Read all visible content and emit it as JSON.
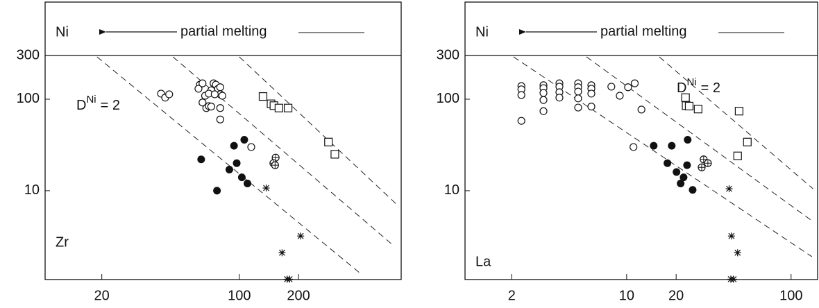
{
  "chart_data": [
    {
      "type": "scatter",
      "xlog": true,
      "ylog": true,
      "xlim": [
        10.3,
        665
      ],
      "ylim": [
        1.07,
        1150
      ],
      "xticks": [
        20,
        100,
        200
      ],
      "yticks": [
        10,
        100,
        300
      ],
      "hline": 300,
      "left_label": "Ni",
      "arrow_label": "partial melting",
      "element_label": "Zr",
      "d_label": {
        "base": "D",
        "sup": "Ni",
        "rest": "= 2"
      },
      "dashed_lines": [
        {
          "x": [
            18.9,
            416
          ],
          "y": [
            290,
            1.23
          ]
        },
        {
          "x": [
            46,
            610
          ],
          "y": [
            290,
            2.5
          ]
        },
        {
          "x": [
            100,
            635
          ],
          "y": [
            290,
            7.0
          ]
        }
      ],
      "series": [
        {
          "marker": "open-circle",
          "color": "#111111",
          "x": [
            40,
            42,
            44,
            63,
            62,
            65,
            67,
            65,
            68,
            70,
            72,
            74,
            76,
            78,
            80,
            80,
            82,
            70,
            75,
            72,
            80,
            80,
            115
          ],
          "y": [
            115,
            104,
            113,
            144,
            130,
            149,
            109,
            92,
            80,
            84,
            125,
            149,
            144,
            130,
            113,
            135,
            109,
            115,
            113,
            83,
            80,
            60,
            30
          ]
        },
        {
          "marker": "filled-circle",
          "color": "#111111",
          "x": [
            64,
            106,
            94,
            97,
            89,
            103,
            110,
            77
          ],
          "y": [
            22,
            36,
            31,
            20,
            17,
            14,
            12,
            10
          ]
        },
        {
          "marker": "square",
          "color": "#111111",
          "x": [
            132,
            145,
            150,
            159,
            177,
            284,
            306
          ],
          "y": [
            107,
            89,
            85,
            80,
            80,
            34,
            25
          ]
        },
        {
          "marker": "circled-plus",
          "color": "#111111",
          "x": [
            153,
            149,
            152
          ],
          "y": [
            23,
            20,
            19
          ]
        },
        {
          "marker": "asterisk",
          "color": "#111111",
          "x": [
            137,
            205,
            165,
            175,
            180
          ],
          "y": [
            10.7,
            3.2,
            2.1,
            1.08,
            1.08
          ]
        }
      ]
    },
    {
      "type": "scatter",
      "xlog": true,
      "ylog": true,
      "xlim": [
        1.04,
        145
      ],
      "ylim": [
        1.07,
        1150
      ],
      "xticks": [
        2,
        10,
        20,
        100
      ],
      "yticks": [
        10,
        100,
        300
      ],
      "hline": 300,
      "left_label": "Ni",
      "arrow_label": "partial melting",
      "element_label": "La",
      "d_label": {
        "base": "D",
        "sup": "Ni",
        "rest": "= 2"
      },
      "dashed_lines": [
        {
          "x": [
            2.05,
            134
          ],
          "y": [
            290,
            1.9
          ]
        },
        {
          "x": [
            5.7,
            136
          ],
          "y": [
            290,
            4.6
          ]
        },
        {
          "x": [
            15.8,
            136
          ],
          "y": [
            290,
            10.5
          ]
        }
      ],
      "series": [
        {
          "marker": "open-circle",
          "color": "#111111",
          "x": [
            2.29,
            2.29,
            2.29,
            2.29,
            3.12,
            3.12,
            3.12,
            3.12,
            3.12,
            3.9,
            3.9,
            3.9,
            3.9,
            5.07,
            5.07,
            5.07,
            5.07,
            5.07,
            6.1,
            6.1,
            6.1,
            6.1,
            8.07,
            9.08,
            10.2,
            11.2,
            12.3,
            11.0
          ],
          "y": [
            139,
            128,
            111,
            58,
            142,
            132,
            117,
            98,
            74,
            149,
            137,
            119,
            104,
            149,
            135,
            121,
            102,
            81,
            142,
            130,
            115,
            83,
            137,
            109,
            135,
            149,
            77,
            30
          ]
        },
        {
          "marker": "filled-circle",
          "color": "#111111",
          "x": [
            14.6,
            23.5,
            18.8,
            17.7,
            23.3,
            20.1,
            22.2,
            21.3,
            25.2
          ],
          "y": [
            31,
            36,
            31,
            20,
            19,
            16,
            14,
            12,
            10.2
          ]
        },
        {
          "marker": "square",
          "color": "#111111",
          "x": [
            22.8,
            23,
            24,
            27.2,
            48.3,
            47.3,
            54.2
          ],
          "y": [
            104,
            85,
            84,
            78,
            74,
            24,
            34
          ]
        },
        {
          "marker": "circled-plus",
          "color": "#111111",
          "x": [
            29.4,
            31.2,
            28.6
          ],
          "y": [
            22,
            20,
            18
          ]
        },
        {
          "marker": "asterisk",
          "color": "#111111",
          "x": [
            42,
            43.4,
            47.3,
            43,
            44.7
          ],
          "y": [
            10.5,
            3.2,
            2.1,
            1.08,
            1.08
          ]
        }
      ]
    }
  ]
}
